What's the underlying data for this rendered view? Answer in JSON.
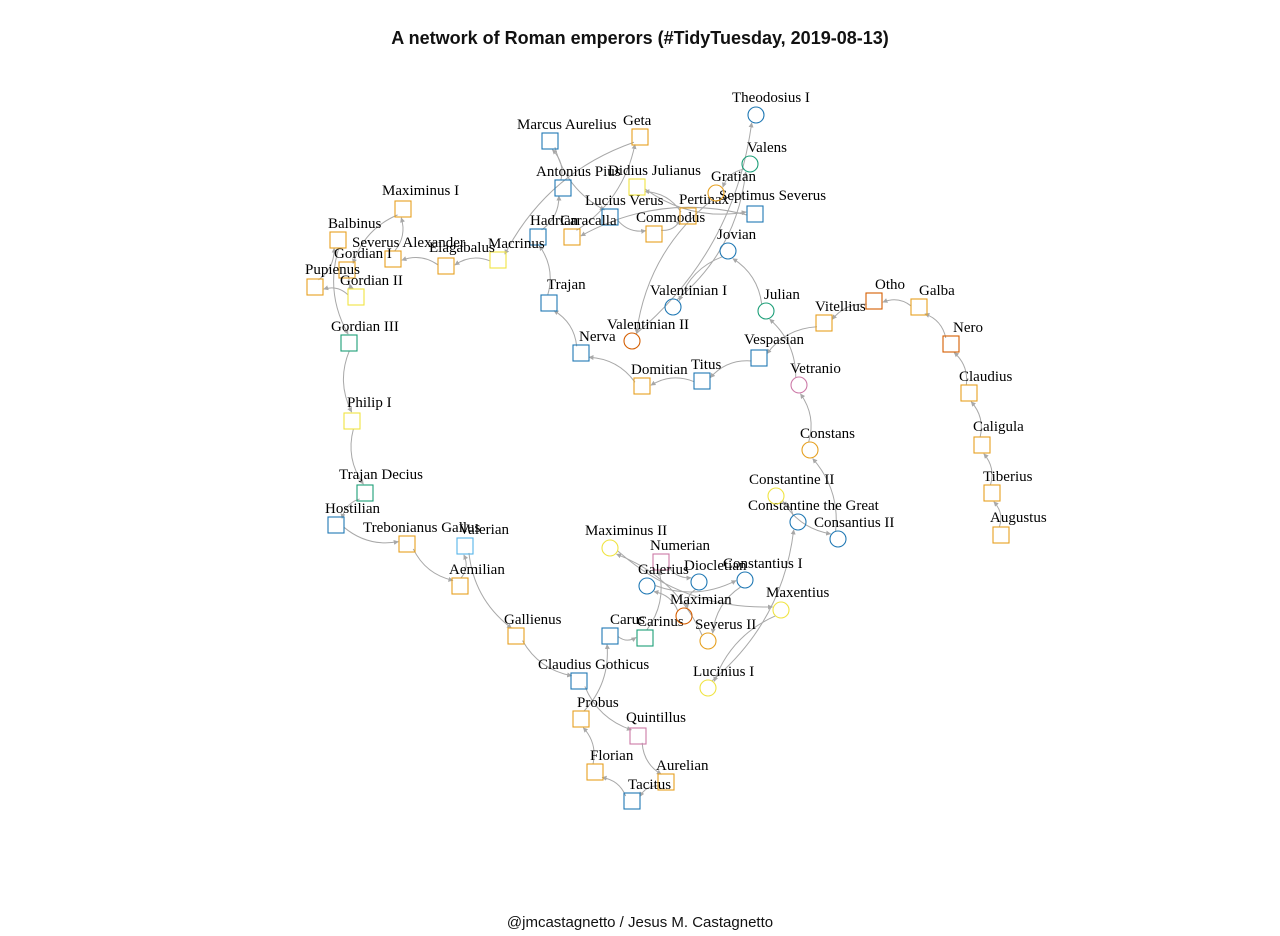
{
  "title": "A network of Roman emperors (#TidyTuesday, 2019-08-13)",
  "caption": "@jmcastagnetto / Jesus M. Castagnetto",
  "colors": {
    "edge": "#a8a8a8",
    "orange": "#e6a020",
    "blue": "#1f78b4",
    "green": "#1b9e77",
    "yellow": "#f0e442",
    "vermillion": "#d55e00",
    "pink": "#cc79a7",
    "skyblue": "#56b4e9"
  },
  "nodes": [
    {
      "id": "Augustus",
      "label": "Augustus",
      "shape": "square",
      "color": "orange"
    },
    {
      "id": "Tiberius",
      "label": "Tiberius",
      "shape": "square",
      "color": "orange"
    },
    {
      "id": "Caligula",
      "label": "Caligula",
      "shape": "square",
      "color": "orange"
    },
    {
      "id": "Claudius",
      "label": "Claudius",
      "shape": "square",
      "color": "orange"
    },
    {
      "id": "Nero",
      "label": "Nero",
      "shape": "square",
      "color": "vermillion"
    },
    {
      "id": "Galba",
      "label": "Galba",
      "shape": "square",
      "color": "orange"
    },
    {
      "id": "Otho",
      "label": "Otho",
      "shape": "square",
      "color": "vermillion"
    },
    {
      "id": "Vitellius",
      "label": "Vitellius",
      "shape": "square",
      "color": "orange"
    },
    {
      "id": "Vespasian",
      "label": "Vespasian",
      "shape": "square",
      "color": "blue"
    },
    {
      "id": "Titus",
      "label": "Titus",
      "shape": "square",
      "color": "blue"
    },
    {
      "id": "Domitian",
      "label": "Domitian",
      "shape": "square",
      "color": "orange"
    },
    {
      "id": "Nerva",
      "label": "Nerva",
      "shape": "square",
      "color": "blue"
    },
    {
      "id": "Trajan",
      "label": "Trajan",
      "shape": "square",
      "color": "blue"
    },
    {
      "id": "Hadrian",
      "label": "Hadrian",
      "shape": "square",
      "color": "blue"
    },
    {
      "id": "Antonius Pius",
      "label": "Antonius Pius",
      "shape": "square",
      "color": "blue"
    },
    {
      "id": "Marcus Aurelius",
      "label": "Marcus Aurelius",
      "shape": "square",
      "color": "blue"
    },
    {
      "id": "Lucius Verus",
      "label": "Lucius Verus",
      "shape": "square",
      "color": "blue"
    },
    {
      "id": "Commodus",
      "label": "Commodus",
      "shape": "square",
      "color": "orange"
    },
    {
      "id": "Pertinax",
      "label": "Pertinax",
      "shape": "square",
      "color": "orange"
    },
    {
      "id": "Didius Julianus",
      "label": "Didius Julianus",
      "shape": "square",
      "color": "yellow"
    },
    {
      "id": "Septimus Severus",
      "label": "Septimus Severus",
      "shape": "square",
      "color": "blue"
    },
    {
      "id": "Caracalla",
      "label": "Caracalla",
      "shape": "square",
      "color": "orange"
    },
    {
      "id": "Geta",
      "label": "Geta",
      "shape": "square",
      "color": "orange"
    },
    {
      "id": "Macrinus",
      "label": "Macrinus",
      "shape": "square",
      "color": "yellow"
    },
    {
      "id": "Elagabalus",
      "label": "Elagabalus",
      "shape": "square",
      "color": "orange"
    },
    {
      "id": "Severus Alexander",
      "label": "Severus Alexander",
      "shape": "square",
      "color": "orange"
    },
    {
      "id": "Maximinus I",
      "label": "Maximinus I",
      "shape": "square",
      "color": "orange"
    },
    {
      "id": "Gordian I",
      "label": "Gordian I",
      "shape": "square",
      "color": "orange"
    },
    {
      "id": "Gordian II",
      "label": "Gordian II",
      "shape": "square",
      "color": "yellow"
    },
    {
      "id": "Pupienus",
      "label": "Pupienus",
      "shape": "square",
      "color": "orange"
    },
    {
      "id": "Balbinus",
      "label": "Balbinus",
      "shape": "square",
      "color": "orange"
    },
    {
      "id": "Gordian III",
      "label": "Gordian III",
      "shape": "square",
      "color": "green"
    },
    {
      "id": "Philip I",
      "label": "Philip I",
      "shape": "square",
      "color": "yellow"
    },
    {
      "id": "Trajan Decius",
      "label": "Trajan Decius",
      "shape": "square",
      "color": "green"
    },
    {
      "id": "Hostilian",
      "label": "Hostilian",
      "shape": "square",
      "color": "blue"
    },
    {
      "id": "Trebonianus Gallus",
      "label": "Trebonianus Gallus",
      "shape": "square",
      "color": "orange"
    },
    {
      "id": "Aemilian",
      "label": "Aemilian",
      "shape": "square",
      "color": "orange"
    },
    {
      "id": "Valerian",
      "label": "Valerian",
      "shape": "square",
      "color": "skyblue"
    },
    {
      "id": "Gallienus",
      "label": "Gallienus",
      "shape": "square",
      "color": "orange"
    },
    {
      "id": "Claudius Gothicus",
      "label": "Claudius Gothicus",
      "shape": "square",
      "color": "blue"
    },
    {
      "id": "Quintillus",
      "label": "Quintillus",
      "shape": "square",
      "color": "pink"
    },
    {
      "id": "Aurelian",
      "label": "Aurelian",
      "shape": "square",
      "color": "orange"
    },
    {
      "id": "Tacitus",
      "label": "Tacitus",
      "shape": "square",
      "color": "blue"
    },
    {
      "id": "Florian",
      "label": "Florian",
      "shape": "square",
      "color": "orange"
    },
    {
      "id": "Probus",
      "label": "Probus",
      "shape": "square",
      "color": "orange"
    },
    {
      "id": "Carus",
      "label": "Carus",
      "shape": "square",
      "color": "blue"
    },
    {
      "id": "Carinus",
      "label": "Carinus",
      "shape": "square",
      "color": "green"
    },
    {
      "id": "Numerian",
      "label": "Numerian",
      "shape": "square",
      "color": "pink"
    },
    {
      "id": "Diocletian",
      "label": "Diocletian",
      "shape": "circle",
      "color": "blue"
    },
    {
      "id": "Maximian",
      "label": "Maximian",
      "shape": "circle",
      "color": "vermillion"
    },
    {
      "id": "Galerius",
      "label": "Galerius",
      "shape": "circle",
      "color": "blue"
    },
    {
      "id": "Constantius I",
      "label": "Constantius I",
      "shape": "circle",
      "color": "blue"
    },
    {
      "id": "Severus II",
      "label": "Severus II",
      "shape": "circle",
      "color": "orange"
    },
    {
      "id": "Maximinus II",
      "label": "Maximinus II",
      "shape": "circle",
      "color": "yellow"
    },
    {
      "id": "Maxentius",
      "label": "Maxentius",
      "shape": "circle",
      "color": "yellow"
    },
    {
      "id": "Lucinius I",
      "label": "Lucinius I",
      "shape": "circle",
      "color": "yellow"
    },
    {
      "id": "Constantine the Great",
      "label": "Constantine the Great",
      "shape": "circle",
      "color": "blue"
    },
    {
      "id": "Constantine II",
      "label": "Constantine II",
      "shape": "circle",
      "color": "yellow"
    },
    {
      "id": "Consantius II",
      "label": "Consantius II",
      "shape": "circle",
      "color": "blue"
    },
    {
      "id": "Constans",
      "label": "Constans",
      "shape": "circle",
      "color": "orange"
    },
    {
      "id": "Vetranio",
      "label": "Vetranio",
      "shape": "circle",
      "color": "pink"
    },
    {
      "id": "Julian",
      "label": "Julian",
      "shape": "circle",
      "color": "green"
    },
    {
      "id": "Jovian",
      "label": "Jovian",
      "shape": "circle",
      "color": "blue"
    },
    {
      "id": "Valentinian I",
      "label": "Valentinian I",
      "shape": "circle",
      "color": "blue"
    },
    {
      "id": "Valens",
      "label": "Valens",
      "shape": "circle",
      "color": "green"
    },
    {
      "id": "Gratian",
      "label": "Gratian",
      "shape": "circle",
      "color": "orange"
    },
    {
      "id": "Valentinian II",
      "label": "Valentinian II",
      "shape": "circle",
      "color": "vermillion"
    },
    {
      "id": "Theodosius I",
      "label": "Theodosius I",
      "shape": "circle",
      "color": "blue"
    }
  ],
  "edges": [
    [
      "Augustus",
      "Tiberius"
    ],
    [
      "Tiberius",
      "Caligula"
    ],
    [
      "Caligula",
      "Claudius"
    ],
    [
      "Claudius",
      "Nero"
    ],
    [
      "Nero",
      "Galba"
    ],
    [
      "Galba",
      "Otho"
    ],
    [
      "Otho",
      "Vitellius"
    ],
    [
      "Vitellius",
      "Vespasian"
    ],
    [
      "Vespasian",
      "Titus"
    ],
    [
      "Titus",
      "Domitian"
    ],
    [
      "Domitian",
      "Nerva"
    ],
    [
      "Nerva",
      "Trajan"
    ],
    [
      "Trajan",
      "Hadrian"
    ],
    [
      "Hadrian",
      "Antonius Pius"
    ],
    [
      "Antonius Pius",
      "Marcus Aurelius"
    ],
    [
      "Marcus Aurelius",
      "Lucius Verus"
    ],
    [
      "Lucius Verus",
      "Commodus"
    ],
    [
      "Commodus",
      "Pertinax"
    ],
    [
      "Pertinax",
      "Didius Julianus"
    ],
    [
      "Didius Julianus",
      "Septimus Severus"
    ],
    [
      "Septimus Severus",
      "Caracalla"
    ],
    [
      "Caracalla",
      "Geta"
    ],
    [
      "Geta",
      "Macrinus"
    ],
    [
      "Macrinus",
      "Elagabalus"
    ],
    [
      "Elagabalus",
      "Severus Alexander"
    ],
    [
      "Severus Alexander",
      "Maximinus I"
    ],
    [
      "Maximinus I",
      "Gordian I"
    ],
    [
      "Gordian I",
      "Gordian II"
    ],
    [
      "Gordian II",
      "Pupienus"
    ],
    [
      "Pupienus",
      "Balbinus"
    ],
    [
      "Balbinus",
      "Gordian III"
    ],
    [
      "Gordian III",
      "Philip I"
    ],
    [
      "Philip I",
      "Trajan Decius"
    ],
    [
      "Trajan Decius",
      "Hostilian"
    ],
    [
      "Hostilian",
      "Trebonianus Gallus"
    ],
    [
      "Trebonianus Gallus",
      "Aemilian"
    ],
    [
      "Aemilian",
      "Valerian"
    ],
    [
      "Valerian",
      "Gallienus"
    ],
    [
      "Gallienus",
      "Claudius Gothicus"
    ],
    [
      "Claudius Gothicus",
      "Quintillus"
    ],
    [
      "Quintillus",
      "Aurelian"
    ],
    [
      "Aurelian",
      "Tacitus"
    ],
    [
      "Tacitus",
      "Florian"
    ],
    [
      "Florian",
      "Probus"
    ],
    [
      "Probus",
      "Carus"
    ],
    [
      "Carus",
      "Carinus"
    ],
    [
      "Carinus",
      "Numerian"
    ],
    [
      "Numerian",
      "Diocletian"
    ],
    [
      "Diocletian",
      "Maximian"
    ],
    [
      "Maximian",
      "Galerius"
    ],
    [
      "Galerius",
      "Constantius I"
    ],
    [
      "Constantius I",
      "Severus II"
    ],
    [
      "Severus II",
      "Maximinus II"
    ],
    [
      "Maximinus II",
      "Maxentius"
    ],
    [
      "Maxentius",
      "Lucinius I"
    ],
    [
      "Lucinius I",
      "Constantine the Great"
    ],
    [
      "Constantine the Great",
      "Constantine II"
    ],
    [
      "Constantine II",
      "Consantius II"
    ],
    [
      "Consantius II",
      "Constans"
    ],
    [
      "Constans",
      "Vetranio"
    ],
    [
      "Vetranio",
      "Julian"
    ],
    [
      "Julian",
      "Jovian"
    ],
    [
      "Jovian",
      "Valentinian I"
    ],
    [
      "Valentinian I",
      "Valens"
    ],
    [
      "Valens",
      "Gratian"
    ],
    [
      "Gratian",
      "Valentinian II"
    ],
    [
      "Valentinian II",
      "Theodosius I"
    ]
  ]
}
